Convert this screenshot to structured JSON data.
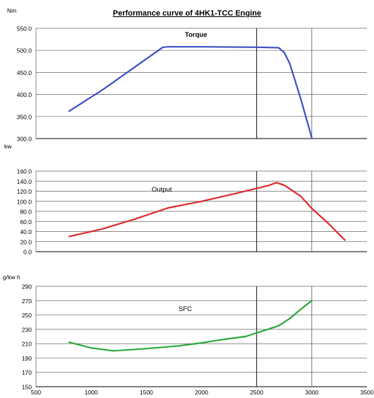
{
  "chart_data": {
    "type": "line",
    "title": "Performance curve of 4HK1-TCC Engine",
    "x": {
      "lim": [
        500,
        3500
      ],
      "ticks": [
        500,
        1000,
        1500,
        2000,
        2500,
        3000,
        3500
      ],
      "tick_labels": [
        "500",
        "1000",
        "1500",
        "2000",
        "2500",
        "3000",
        "3500"
      ]
    },
    "marker_lines_x": [
      2500,
      3000
    ],
    "panels": [
      {
        "id": "torque",
        "unit": "Nm",
        "series_label": "Torque",
        "color": "#3d4fc4",
        "ylim": [
          300,
          550
        ],
        "y_ticks": [
          300,
          350,
          400,
          450,
          500,
          550
        ],
        "y_tick_labels": [
          "300.0",
          "350.0",
          "400.0",
          "450.0",
          "500.0",
          "550.0"
        ],
        "points": [
          [
            800,
            362
          ],
          [
            1100,
            410
          ],
          [
            1650,
            507
          ],
          [
            1700,
            508
          ],
          [
            2000,
            508
          ],
          [
            2500,
            507
          ],
          [
            2700,
            506
          ],
          [
            2750,
            495
          ],
          [
            2800,
            470
          ],
          [
            2900,
            390
          ],
          [
            3000,
            302
          ]
        ]
      },
      {
        "id": "output",
        "unit": "kw",
        "series_label": "Output",
        "color": "#e02a2a",
        "ylim": [
          0,
          160
        ],
        "y_ticks": [
          0,
          20,
          40,
          60,
          80,
          100,
          120,
          140,
          160
        ],
        "y_tick_labels": [
          "0.0",
          "20.0",
          "40.0",
          "60.0",
          "80.0",
          "100.0",
          "120.0",
          "140.0",
          "160.0"
        ],
        "points": [
          [
            800,
            30
          ],
          [
            1100,
            45
          ],
          [
            1400,
            65
          ],
          [
            1700,
            87
          ],
          [
            2000,
            100
          ],
          [
            2300,
            115
          ],
          [
            2600,
            131
          ],
          [
            2680,
            137
          ],
          [
            2750,
            132
          ],
          [
            2900,
            110
          ],
          [
            3000,
            86
          ],
          [
            3150,
            56
          ],
          [
            3300,
            23
          ]
        ]
      },
      {
        "id": "sfc",
        "unit": "g/kw h",
        "series_label": "SFC",
        "color": "#2ca83a",
        "ylim": [
          150,
          290
        ],
        "y_ticks": [
          150,
          170,
          190,
          210,
          230,
          250,
          270,
          290
        ],
        "y_tick_labels": [
          "150",
          "170",
          "190",
          "210",
          "230",
          "250",
          "270",
          "290"
        ],
        "points": [
          [
            800,
            212
          ],
          [
            1000,
            204
          ],
          [
            1200,
            200
          ],
          [
            1500,
            203
          ],
          [
            1800,
            207
          ],
          [
            2000,
            211
          ],
          [
            2200,
            216
          ],
          [
            2400,
            220
          ],
          [
            2600,
            230
          ],
          [
            2700,
            235
          ],
          [
            2800,
            245
          ],
          [
            2900,
            258
          ],
          [
            3000,
            270
          ]
        ]
      }
    ]
  }
}
